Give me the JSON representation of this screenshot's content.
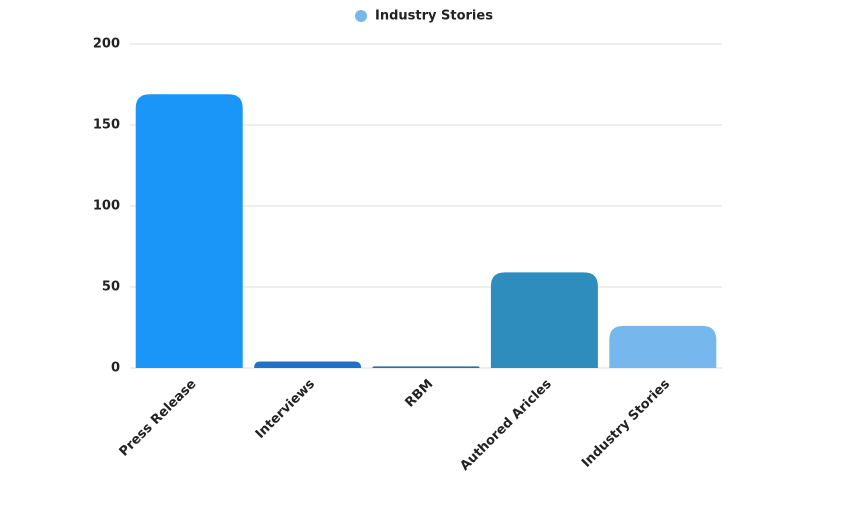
{
  "chart_data": {
    "type": "bar",
    "categories": [
      "Press Release",
      "Interviews",
      "RBM",
      "Authored Aricles",
      "Industry Stories"
    ],
    "series": [
      {
        "name": "Industry Stories",
        "color": "#76b8ee",
        "values": [
          169,
          4,
          1,
          59,
          26
        ],
        "colors": [
          "#1a96f8",
          "#1f73c6",
          "#2f6fa8",
          "#2e8dbd",
          "#76b8ee"
        ]
      }
    ],
    "ylim": [
      0,
      200
    ],
    "yticks": [
      0,
      50,
      100,
      150,
      200
    ],
    "grid": true
  }
}
